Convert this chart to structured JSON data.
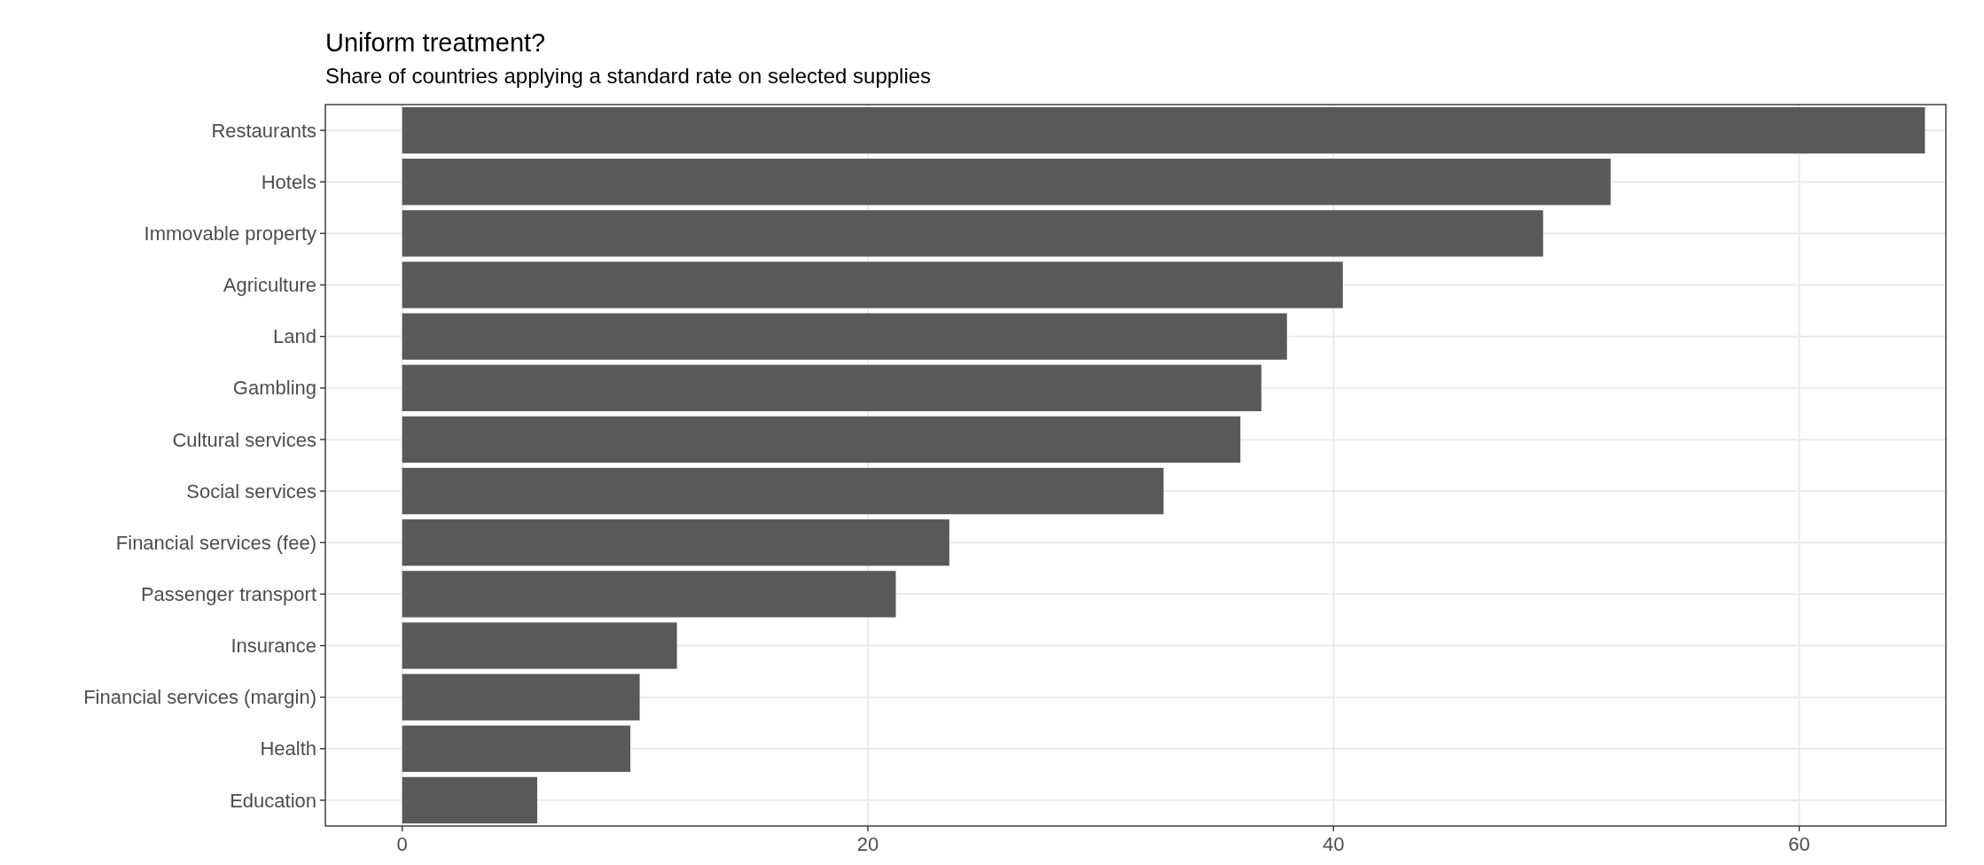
{
  "chart_data": {
    "type": "bar",
    "orientation": "horizontal",
    "title": "Uniform treatment?",
    "subtitle": "Share of countries applying a standard rate on selected supplies",
    "categories": [
      "Restaurants",
      "Hotels",
      "Immovable property",
      "Agriculture",
      "Land",
      "Gambling",
      "Cultural services",
      "Social services",
      "Financial services (fee)",
      "Passenger transport",
      "Insurance",
      "Financial services (margin)",
      "Health",
      "Education"
    ],
    "values": [
      65.4,
      51.9,
      49.0,
      40.4,
      38.0,
      36.9,
      36.0,
      32.7,
      23.5,
      21.2,
      11.8,
      10.2,
      9.8,
      5.8
    ],
    "color": "#595959",
    "xlim": [
      -3.3,
      66.3
    ],
    "xticks": [
      0,
      20,
      40,
      60
    ],
    "grid": true
  }
}
